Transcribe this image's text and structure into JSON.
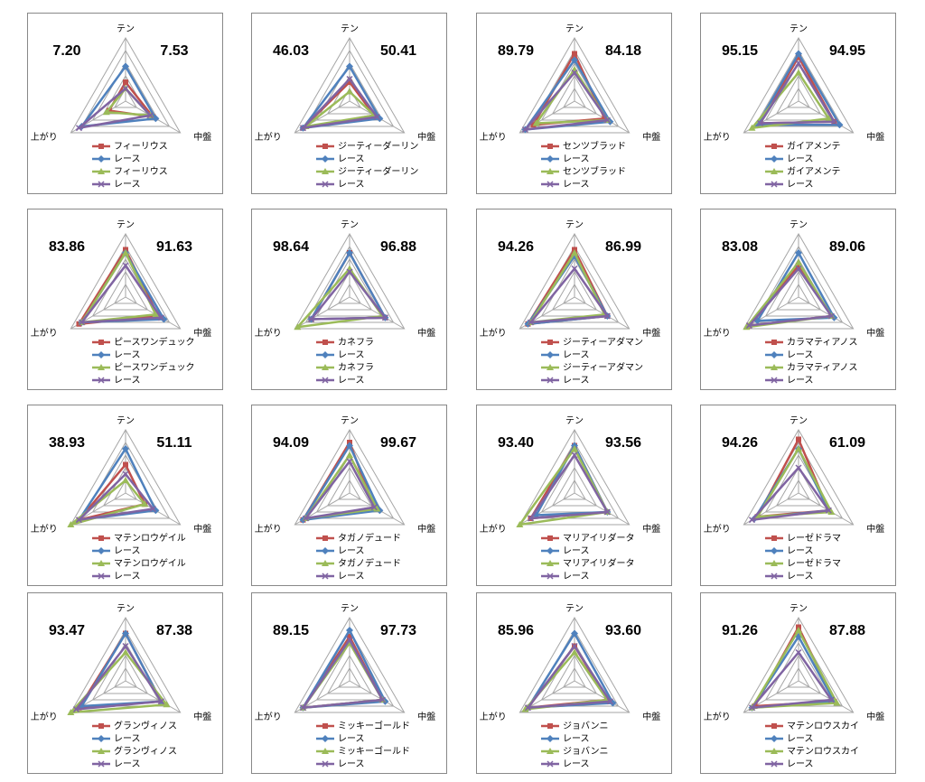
{
  "chart_data": [
    {
      "type": "radar",
      "annotations": [
        "7.20",
        "7.53"
      ],
      "categories": [
        "テン",
        "中盤",
        "上がり"
      ],
      "rlim": [
        0,
        100
      ],
      "rticks": [
        20,
        40,
        60,
        80,
        100
      ],
      "series": [
        {
          "name": "フィーリウス",
          "color": "#c0504d",
          "marker": "square",
          "values": [
            30,
            50,
            30
          ]
        },
        {
          "name": "レース",
          "color": "#4f81bd",
          "marker": "diamond",
          "values": [
            55,
            55,
            80
          ]
        },
        {
          "name": "フィーリウス",
          "color": "#9bbb59",
          "marker": "triangle",
          "values": [
            20,
            45,
            35
          ]
        },
        {
          "name": "レース",
          "color": "#8064a2",
          "marker": "x",
          "values": [
            20,
            45,
            85
          ]
        }
      ]
    },
    {
      "type": "radar",
      "annotations": [
        "46.03",
        "50.41"
      ],
      "categories": [
        "テン",
        "中盤",
        "上がり"
      ],
      "rlim": [
        0,
        100
      ],
      "rticks": [
        20,
        40,
        60,
        80,
        100
      ],
      "series": [
        {
          "name": "ジーティーダーリン",
          "color": "#c0504d",
          "marker": "square",
          "values": [
            30,
            45,
            85
          ]
        },
        {
          "name": "レース",
          "color": "#4f81bd",
          "marker": "diamond",
          "values": [
            55,
            55,
            85
          ]
        },
        {
          "name": "ジーティーダーリン",
          "color": "#9bbb59",
          "marker": "triangle",
          "values": [
            15,
            45,
            80
          ]
        },
        {
          "name": "レース",
          "color": "#8064a2",
          "marker": "x",
          "values": [
            35,
            50,
            85
          ]
        }
      ]
    },
    {
      "type": "radar",
      "annotations": [
        "89.79",
        "84.18"
      ],
      "categories": [
        "テン",
        "中盤",
        "上がり"
      ],
      "rlim": [
        0,
        100
      ],
      "rticks": [
        20,
        40,
        60,
        80,
        100
      ],
      "series": [
        {
          "name": "センツブラッド",
          "color": "#c0504d",
          "marker": "square",
          "values": [
            75,
            55,
            75
          ]
        },
        {
          "name": "レース",
          "color": "#4f81bd",
          "marker": "diamond",
          "values": [
            65,
            65,
            90
          ]
        },
        {
          "name": "センツブラッド",
          "color": "#9bbb59",
          "marker": "triangle",
          "values": [
            50,
            60,
            70
          ]
        },
        {
          "name": "レース",
          "color": "#8064a2",
          "marker": "x",
          "values": [
            45,
            60,
            90
          ]
        }
      ]
    },
    {
      "type": "radar",
      "annotations": [
        "95.15",
        "94.95"
      ],
      "categories": [
        "テン",
        "中盤",
        "上がり"
      ],
      "rlim": [
        0,
        100
      ],
      "rticks": [
        20,
        40,
        60,
        80,
        100
      ],
      "series": [
        {
          "name": "ガイアメンテ",
          "color": "#c0504d",
          "marker": "square",
          "values": [
            70,
            65,
            70
          ]
        },
        {
          "name": "レース",
          "color": "#4f81bd",
          "marker": "diamond",
          "values": [
            75,
            75,
            75
          ]
        },
        {
          "name": "ガイアメンテ",
          "color": "#9bbb59",
          "marker": "triangle",
          "values": [
            45,
            55,
            85
          ]
        },
        {
          "name": "レース",
          "color": "#8064a2",
          "marker": "x",
          "values": [
            60,
            65,
            70
          ]
        }
      ]
    },
    {
      "type": "radar",
      "annotations": [
        "83.86",
        "91.63"
      ],
      "categories": [
        "テン",
        "中盤",
        "上がり"
      ],
      "rlim": [
        0,
        100
      ],
      "rticks": [
        20,
        40,
        60,
        80,
        100
      ],
      "series": [
        {
          "name": "ピースワンデュック",
          "color": "#c0504d",
          "marker": "square",
          "values": [
            75,
            60,
            85
          ]
        },
        {
          "name": "レース",
          "color": "#4f81bd",
          "marker": "diamond",
          "values": [
            70,
            70,
            80
          ]
        },
        {
          "name": "ピースワンデュック",
          "color": "#9bbb59",
          "marker": "triangle",
          "values": [
            70,
            55,
            80
          ]
        },
        {
          "name": "レース",
          "color": "#8064a2",
          "marker": "x",
          "values": [
            50,
            65,
            80
          ]
        }
      ]
    },
    {
      "type": "radar",
      "annotations": [
        "98.64",
        "96.88"
      ],
      "categories": [
        "テン",
        "中盤",
        "上がり"
      ],
      "rlim": [
        0,
        100
      ],
      "rticks": [
        20,
        40,
        60,
        80,
        100
      ],
      "series": [
        {
          "name": "カネフラ",
          "color": "#c0504d",
          "marker": "square",
          "values": [
            70,
            65,
            70
          ]
        },
        {
          "name": "レース",
          "color": "#4f81bd",
          "marker": "diamond",
          "values": [
            70,
            65,
            70
          ]
        },
        {
          "name": "カネフラ",
          "color": "#9bbb59",
          "marker": "triangle",
          "values": [
            45,
            60,
            95
          ]
        },
        {
          "name": "レース",
          "color": "#8064a2",
          "marker": "x",
          "values": [
            40,
            65,
            70
          ]
        }
      ]
    },
    {
      "type": "radar",
      "annotations": [
        "94.26",
        "86.99"
      ],
      "categories": [
        "テン",
        "中盤",
        "上がり"
      ],
      "rlim": [
        0,
        100
      ],
      "rticks": [
        20,
        40,
        60,
        80,
        100
      ],
      "series": [
        {
          "name": "ジーティーアダマン",
          "color": "#c0504d",
          "marker": "square",
          "values": [
            75,
            60,
            85
          ]
        },
        {
          "name": "レース",
          "color": "#4f81bd",
          "marker": "diamond",
          "values": [
            65,
            60,
            85
          ]
        },
        {
          "name": "ジーティーアダマン",
          "color": "#9bbb59",
          "marker": "triangle",
          "values": [
            70,
            55,
            80
          ]
        },
        {
          "name": "レース",
          "color": "#8064a2",
          "marker": "x",
          "values": [
            45,
            60,
            80
          ]
        }
      ]
    },
    {
      "type": "radar",
      "annotations": [
        "83.08",
        "89.06"
      ],
      "categories": [
        "テン",
        "中盤",
        "上がり"
      ],
      "rlim": [
        0,
        100
      ],
      "rticks": [
        20,
        40,
        60,
        80,
        100
      ],
      "series": [
        {
          "name": "カラマティアノス",
          "color": "#c0504d",
          "marker": "square",
          "values": [
            50,
            60,
            90
          ]
        },
        {
          "name": "レース",
          "color": "#4f81bd",
          "marker": "diamond",
          "values": [
            70,
            65,
            75
          ]
        },
        {
          "name": "カラマティアノス",
          "color": "#9bbb59",
          "marker": "triangle",
          "values": [
            55,
            60,
            95
          ]
        },
        {
          "name": "レース",
          "color": "#8064a2",
          "marker": "x",
          "values": [
            45,
            60,
            90
          ]
        }
      ]
    },
    {
      "type": "radar",
      "annotations": [
        "38.93",
        "51.11"
      ],
      "categories": [
        "テン",
        "中盤",
        "上がり"
      ],
      "rlim": [
        0,
        100
      ],
      "rticks": [
        20,
        40,
        60,
        80,
        100
      ],
      "series": [
        {
          "name": "マテンロウゲイル",
          "color": "#c0504d",
          "marker": "square",
          "values": [
            45,
            35,
            85
          ]
        },
        {
          "name": "レース",
          "color": "#4f81bd",
          "marker": "diamond",
          "values": [
            70,
            55,
            85
          ]
        },
        {
          "name": "マテンロウゲイル",
          "color": "#9bbb59",
          "marker": "triangle",
          "values": [
            20,
            35,
            100
          ]
        },
        {
          "name": "レース",
          "color": "#8064a2",
          "marker": "x",
          "values": [
            30,
            50,
            85
          ]
        }
      ]
    },
    {
      "type": "radar",
      "annotations": [
        "94.09",
        "99.67"
      ],
      "categories": [
        "テン",
        "中盤",
        "上がり"
      ],
      "rlim": [
        0,
        100
      ],
      "rticks": [
        20,
        40,
        60,
        80,
        100
      ],
      "series": [
        {
          "name": "タガノデュード",
          "color": "#c0504d",
          "marker": "square",
          "values": [
            80,
            45,
            85
          ]
        },
        {
          "name": "レース",
          "color": "#4f81bd",
          "marker": "diamond",
          "values": [
            75,
            55,
            85
          ]
        },
        {
          "name": "タガノデュード",
          "color": "#9bbb59",
          "marker": "triangle",
          "values": [
            60,
            50,
            80
          ]
        },
        {
          "name": "レース",
          "color": "#8064a2",
          "marker": "x",
          "values": [
            50,
            45,
            80
          ]
        }
      ]
    },
    {
      "type": "radar",
      "annotations": [
        "93.40",
        "93.56"
      ],
      "categories": [
        "テン",
        "中盤",
        "上がり"
      ],
      "rlim": [
        0,
        100
      ],
      "rticks": [
        20,
        40,
        60,
        80,
        100
      ],
      "series": [
        {
          "name": "マリアイリダータ",
          "color": "#c0504d",
          "marker": "square",
          "values": [
            75,
            60,
            80
          ]
        },
        {
          "name": "レース",
          "color": "#4f81bd",
          "marker": "diamond",
          "values": [
            75,
            60,
            70
          ]
        },
        {
          "name": "マリアイリダータ",
          "color": "#9bbb59",
          "marker": "triangle",
          "values": [
            70,
            60,
            100
          ]
        },
        {
          "name": "レース",
          "color": "#8064a2",
          "marker": "x",
          "values": [
            60,
            60,
            80
          ]
        }
      ]
    },
    {
      "type": "radar",
      "annotations": [
        "94.26",
        "61.09"
      ],
      "categories": [
        "テン",
        "中盤",
        "上がり"
      ],
      "rlim": [
        0,
        100
      ],
      "rticks": [
        20,
        40,
        60,
        80,
        100
      ],
      "series": [
        {
          "name": "レーゼドラマ",
          "color": "#c0504d",
          "marker": "square",
          "values": [
            85,
            55,
            75
          ]
        },
        {
          "name": "レース",
          "color": "#4f81bd",
          "marker": "diamond",
          "values": [
            70,
            55,
            80
          ]
        },
        {
          "name": "レーゼドラマ",
          "color": "#9bbb59",
          "marker": "triangle",
          "values": [
            70,
            60,
            75
          ]
        },
        {
          "name": "レース",
          "color": "#8064a2",
          "marker": "x",
          "values": [
            40,
            55,
            85
          ]
        }
      ]
    },
    {
      "type": "radar",
      "annotations": [
        "93.47",
        "87.38"
      ],
      "categories": [
        "テン",
        "中盤",
        "上がり"
      ],
      "rlim": [
        0,
        100
      ],
      "rticks": [
        20,
        40,
        60,
        80,
        100
      ],
      "series": [
        {
          "name": "グランヴィノス",
          "color": "#c0504d",
          "marker": "square",
          "values": [
            75,
            65,
            85
          ]
        },
        {
          "name": "レース",
          "color": "#4f81bd",
          "marker": "diamond",
          "values": [
            75,
            65,
            80
          ]
        },
        {
          "name": "グランヴィノス",
          "color": "#9bbb59",
          "marker": "triangle",
          "values": [
            45,
            75,
            100
          ]
        },
        {
          "name": "レース",
          "color": "#8064a2",
          "marker": "x",
          "values": [
            55,
            65,
            90
          ]
        }
      ]
    },
    {
      "type": "radar",
      "annotations": [
        "89.15",
        "97.73"
      ],
      "categories": [
        "テン",
        "中盤",
        "上がり"
      ],
      "rlim": [
        0,
        100
      ],
      "rticks": [
        20,
        40,
        60,
        80,
        100
      ],
      "series": [
        {
          "name": "ミッキーゴールド",
          "color": "#c0504d",
          "marker": "square",
          "values": [
            70,
            60,
            85
          ]
        },
        {
          "name": "レース",
          "color": "#4f81bd",
          "marker": "diamond",
          "values": [
            80,
            65,
            85
          ]
        },
        {
          "name": "ミッキーゴールド",
          "color": "#9bbb59",
          "marker": "triangle",
          "values": [
            60,
            60,
            85
          ]
        },
        {
          "name": "レース",
          "color": "#8064a2",
          "marker": "x",
          "values": [
            65,
            60,
            85
          ]
        }
      ]
    },
    {
      "type": "radar",
      "annotations": [
        "85.96",
        "93.60"
      ],
      "categories": [
        "テン",
        "中盤",
        "上がり"
      ],
      "rlim": [
        0,
        100
      ],
      "rticks": [
        20,
        40,
        60,
        80,
        100
      ],
      "series": [
        {
          "name": "ジョバンニ",
          "color": "#c0504d",
          "marker": "square",
          "values": [
            55,
            60,
            85
          ]
        },
        {
          "name": "レース",
          "color": "#4f81bd",
          "marker": "diamond",
          "values": [
            75,
            70,
            85
          ]
        },
        {
          "name": "ジョバンニ",
          "color": "#9bbb59",
          "marker": "triangle",
          "values": [
            45,
            60,
            90
          ]
        },
        {
          "name": "レース",
          "color": "#8064a2",
          "marker": "x",
          "values": [
            55,
            65,
            85
          ]
        }
      ]
    },
    {
      "type": "radar",
      "annotations": [
        "91.26",
        "87.88"
      ],
      "categories": [
        "テン",
        "中盤",
        "上がり"
      ],
      "rlim": [
        0,
        100
      ],
      "rticks": [
        20,
        40,
        60,
        80,
        100
      ],
      "series": [
        {
          "name": "マテンロウスカイ",
          "color": "#c0504d",
          "marker": "square",
          "values": [
            85,
            65,
            80
          ]
        },
        {
          "name": "レース",
          "color": "#4f81bd",
          "marker": "diamond",
          "values": [
            70,
            65,
            85
          ]
        },
        {
          "name": "マテンロウスカイ",
          "color": "#9bbb59",
          "marker": "triangle",
          "values": [
            80,
            70,
            85
          ]
        },
        {
          "name": "レース",
          "color": "#8064a2",
          "marker": "x",
          "values": [
            45,
            60,
            85
          ]
        }
      ]
    }
  ]
}
